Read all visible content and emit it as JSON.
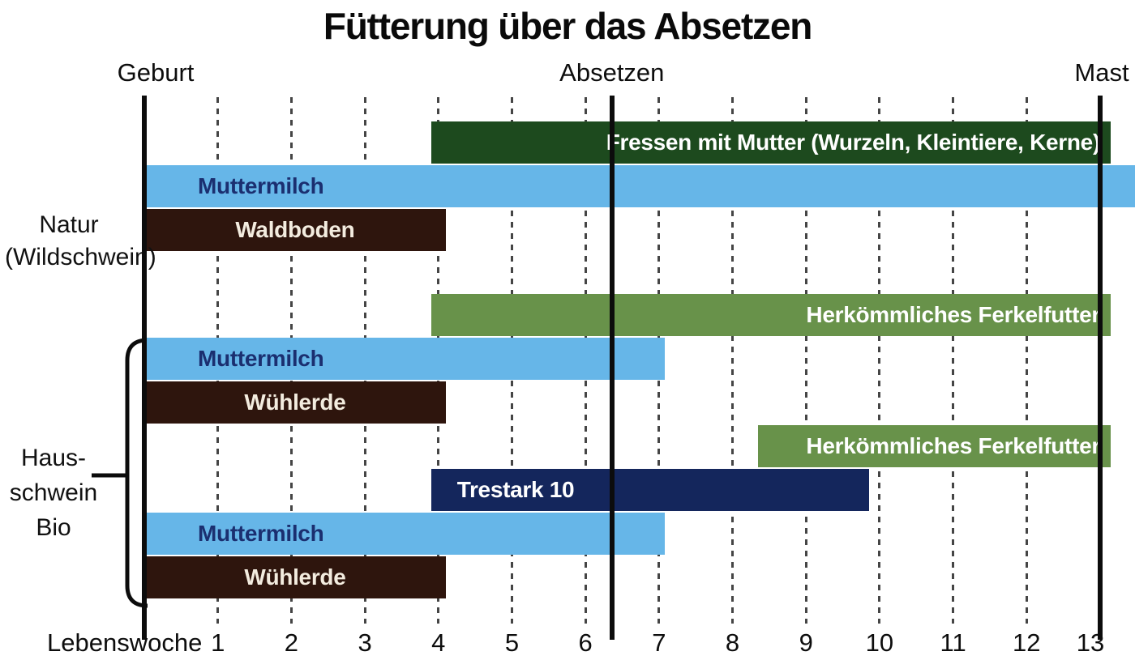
{
  "title": "Fütterung über das Absetzen",
  "colors": {
    "background": "#ffffff",
    "line": "#0c0c0c",
    "grid": "#454545",
    "title_text": "#0a0a0a",
    "roles": {
      "darkgreen": {
        "bg": "#1d4a1e",
        "text": "#ffffff"
      },
      "green": {
        "bg": "#68924a",
        "text": "#ffffff"
      },
      "blue": {
        "bg": "#66b6e8",
        "text": "#1b2f70"
      },
      "brown": {
        "bg": "#2e150d",
        "text": "#f3ecdf"
      },
      "navy": {
        "bg": "#14265c",
        "text": "#ffffff"
      }
    }
  },
  "chart_data": {
    "type": "gantt",
    "title": "Fütterung über das Absetzen",
    "xlabel": "Lebenswoche",
    "xlim": [
      0,
      13
    ],
    "grid": "dashed-vertical-weekly",
    "week_ticks": [
      1,
      2,
      3,
      4,
      5,
      6,
      7,
      8,
      9,
      10,
      11,
      12,
      13
    ],
    "milestones": [
      {
        "label": "Geburt",
        "week": 0,
        "dx": 14
      },
      {
        "label": "Absetzen",
        "week": 6.36,
        "dx": 0
      },
      {
        "label": "Mast",
        "week": 13,
        "dx": 2
      }
    ],
    "groups": [
      {
        "name": "Natur (Wildschwein)",
        "label_lines": [
          "Natur",
          "(Wildschwein)"
        ],
        "bars": [
          {
            "row": 0,
            "start": 3.9,
            "end": 13,
            "role": "darkgreen",
            "label": "Fressen mit Mutter (Wurzeln, Kleintiere, Kerne)",
            "align": "right"
          },
          {
            "row": 1,
            "start": 0,
            "end": 13,
            "role": "blue",
            "label": "Muttermilch",
            "align": "left"
          },
          {
            "row": 2,
            "start": 0,
            "end": 4.1,
            "role": "brown",
            "label": "Waldboden",
            "align": "center"
          }
        ]
      },
      {
        "name": "Hausschwein Bio",
        "label_lines": [
          "Haus-",
          "schwein",
          "Bio"
        ],
        "bars": [
          {
            "row": 4,
            "start": 3.9,
            "end": 13,
            "role": "green",
            "label": "Herkömmliches Ferkelfutter",
            "align": "right"
          },
          {
            "row": 5,
            "start": 0,
            "end": 6.35,
            "role": "blue",
            "label": "Muttermilch",
            "align": "left"
          },
          {
            "row": 6,
            "start": 0,
            "end": 4.1,
            "role": "brown",
            "label": "Wühlerde",
            "align": "center"
          },
          {
            "row": 7,
            "start": 8.35,
            "end": 13,
            "role": "green",
            "label": "Herkömmliches Ferkelfutter",
            "align": "right"
          },
          {
            "row": 8,
            "start": 3.9,
            "end": 9.5,
            "role": "navy",
            "label": "Trestark 10",
            "align": "left-inset"
          },
          {
            "row": 9,
            "start": 0,
            "end": 6.35,
            "role": "blue",
            "label": "Muttermilch",
            "align": "left"
          },
          {
            "row": 10,
            "start": 0,
            "end": 4.1,
            "role": "brown",
            "label": "Wühlerde",
            "align": "center"
          }
        ]
      }
    ]
  }
}
